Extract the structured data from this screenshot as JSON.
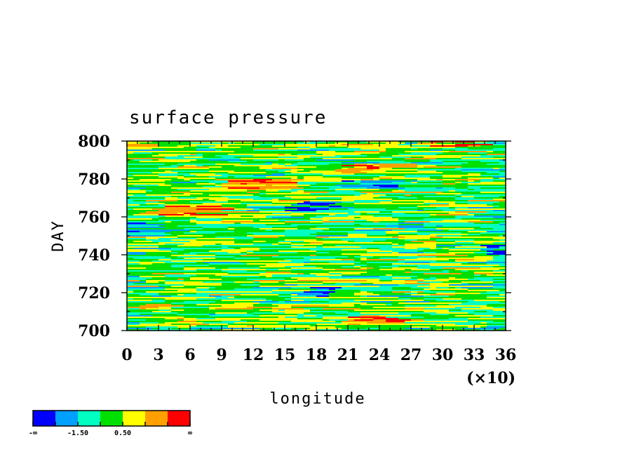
{
  "chart_data": {
    "type": "heatmap",
    "title": "surface pressure",
    "xlabel": "longitude",
    "ylabel": "DAY",
    "x_multiplier_label": "(×10)",
    "xlim": [
      0,
      36
    ],
    "ylim": [
      700,
      800
    ],
    "x_ticks": [
      "0",
      "3",
      "6",
      "9",
      "12",
      "15",
      "18",
      "21",
      "24",
      "27",
      "30",
      "33",
      "36"
    ],
    "y_ticks": [
      "700",
      "720",
      "740",
      "760",
      "780",
      "800"
    ],
    "colorbar": {
      "colors": [
        "#0000ff",
        "#00a0ff",
        "#00ffc0",
        "#00e000",
        "#ffff00",
        "#ffa000",
        "#ff0000"
      ],
      "labels": [
        "-∞",
        "-1.50",
        "0.50",
        "∞"
      ]
    },
    "notable_regions": [
      {
        "x": [
          16,
          20
        ],
        "y": [
          762,
          768
        ],
        "level": "low"
      },
      {
        "x": [
          0,
          3
        ],
        "y": [
          752,
          758
        ],
        "level": "low"
      },
      {
        "x": [
          21,
          26
        ],
        "y": [
          775,
          779
        ],
        "level": "low"
      },
      {
        "x": [
          3,
          9
        ],
        "y": [
          760,
          766
        ],
        "level": "high"
      },
      {
        "x": [
          9,
          16
        ],
        "y": [
          774,
          780
        ],
        "level": "high"
      },
      {
        "x": [
          21,
          26
        ],
        "y": [
          783,
          788
        ],
        "level": "high"
      },
      {
        "x": [
          28,
          33
        ],
        "y": [
          797,
          800
        ],
        "level": "high"
      },
      {
        "x": [
          17,
          20
        ],
        "y": [
          718,
          723
        ],
        "level": "low"
      },
      {
        "x": [
          21,
          26
        ],
        "y": [
          703,
          708
        ],
        "level": "high"
      },
      {
        "x": [
          34,
          36
        ],
        "y": [
          740,
          745
        ],
        "level": "low"
      }
    ]
  }
}
